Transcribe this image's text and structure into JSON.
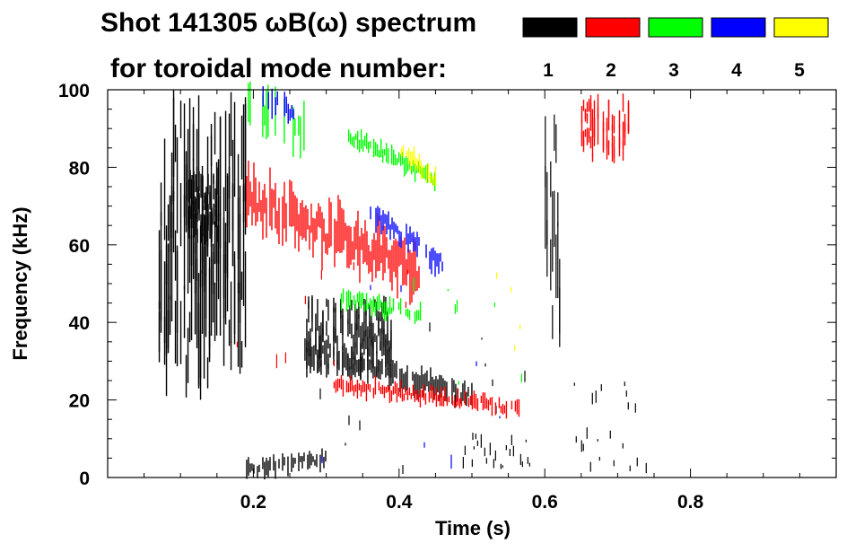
{
  "chart_data": {
    "type": "heatmap",
    "title_line1": "Shot 141305 ωB(ω) spectrum",
    "title_line2": "for toroidal mode number:",
    "xlabel": "Time (s)",
    "ylabel": "Frequency (kHz)",
    "xlim": [
      0.0,
      1.0
    ],
    "ylim": [
      0,
      100
    ],
    "xticks": [
      0.2,
      0.4,
      0.6,
      0.8
    ],
    "xtick_labels": [
      "0.2",
      "0.4",
      "0.6",
      "0.8"
    ],
    "yticks": [
      0,
      20,
      40,
      60,
      80,
      100
    ],
    "ytick_labels": [
      "0",
      "20",
      "40",
      "60",
      "80",
      "100"
    ],
    "legend": [
      {
        "mode": "1",
        "color": "#000000"
      },
      {
        "mode": "2",
        "color": "#ff0000"
      },
      {
        "mode": "3",
        "color": "#00ff00"
      },
      {
        "mode": "4",
        "color": "#0000ff"
      },
      {
        "mode": "5",
        "color": "#ffff00"
      }
    ],
    "features": [
      {
        "mode": 1,
        "kind": "blob",
        "t": [
          0.07,
          0.19
        ],
        "f": [
          20,
          100
        ],
        "density": 0.85
      },
      {
        "mode": 1,
        "kind": "blob",
        "t": [
          0.11,
          0.15
        ],
        "f": [
          60,
          80
        ],
        "density": 1.0
      },
      {
        "mode": 1,
        "kind": "blob",
        "t": [
          0.27,
          0.39
        ],
        "f": [
          25,
          47
        ],
        "density": 0.9
      },
      {
        "mode": 1,
        "kind": "curve",
        "t": [
          0.27,
          0.5
        ],
        "f0": 33,
        "f1": 21,
        "spread": 4,
        "density": 0.9
      },
      {
        "mode": 1,
        "kind": "curve",
        "t": [
          0.19,
          0.3
        ],
        "f0": 2,
        "f1": 5,
        "spread": 3,
        "density": 0.8
      },
      {
        "mode": 1,
        "kind": "scatter",
        "t": [
          0.48,
          0.58
        ],
        "f": [
          2,
          12
        ],
        "density": 0.5
      },
      {
        "mode": 1,
        "kind": "scatter",
        "t": [
          0.2,
          0.6
        ],
        "f": [
          0,
          40
        ],
        "density": 0.08
      },
      {
        "mode": 1,
        "kind": "vline",
        "t": [
          0.6,
          0.62
        ],
        "f": [
          30,
          95
        ],
        "density": 0.7
      },
      {
        "mode": 1,
        "kind": "scatter",
        "t": [
          0.64,
          0.74
        ],
        "f": [
          0,
          25
        ],
        "density": 0.35
      },
      {
        "mode": 2,
        "kind": "curve",
        "t": [
          0.19,
          0.43
        ],
        "f0": 72,
        "f1": 53,
        "spread": 9,
        "density": 0.95
      },
      {
        "mode": 2,
        "kind": "curve",
        "t": [
          0.31,
          0.57
        ],
        "f0": 24,
        "f1": 18,
        "spread": 3,
        "density": 0.9
      },
      {
        "mode": 2,
        "kind": "blob",
        "t": [
          0.65,
          0.72
        ],
        "f": [
          80,
          100
        ],
        "density": 0.6
      },
      {
        "mode": 2,
        "kind": "scatter",
        "t": [
          0.15,
          0.45
        ],
        "f": [
          25,
          60
        ],
        "density": 0.1
      },
      {
        "mode": 3,
        "kind": "curve",
        "t": [
          0.18,
          0.27
        ],
        "f0": 100,
        "f1": 90,
        "spread": 8,
        "density": 0.5
      },
      {
        "mode": 3,
        "kind": "curve",
        "t": [
          0.33,
          0.45
        ],
        "f0": 88,
        "f1": 77,
        "spread": 3,
        "density": 0.95
      },
      {
        "mode": 3,
        "kind": "curve",
        "t": [
          0.32,
          0.43
        ],
        "f0": 46,
        "f1": 42,
        "spread": 3,
        "density": 0.85
      },
      {
        "mode": 3,
        "kind": "scatter",
        "t": [
          0.4,
          0.58
        ],
        "f": [
          20,
          55
        ],
        "density": 0.08
      },
      {
        "mode": 4,
        "kind": "curve",
        "t": [
          0.21,
          0.26
        ],
        "f0": 100,
        "f1": 94,
        "spread": 5,
        "density": 0.6
      },
      {
        "mode": 4,
        "kind": "curve",
        "t": [
          0.36,
          0.46
        ],
        "f0": 68,
        "f1": 55,
        "spread": 4,
        "density": 0.9
      },
      {
        "mode": 4,
        "kind": "scatter",
        "t": [
          0.2,
          0.57
        ],
        "f": [
          0,
          55
        ],
        "density": 0.04
      },
      {
        "mode": 5,
        "kind": "curve",
        "t": [
          0.4,
          0.45
        ],
        "f0": 85,
        "f1": 77,
        "spread": 3,
        "density": 0.85
      },
      {
        "mode": 5,
        "kind": "scatter",
        "t": [
          0.42,
          0.58
        ],
        "f": [
          15,
          70
        ],
        "density": 0.05
      }
    ]
  }
}
